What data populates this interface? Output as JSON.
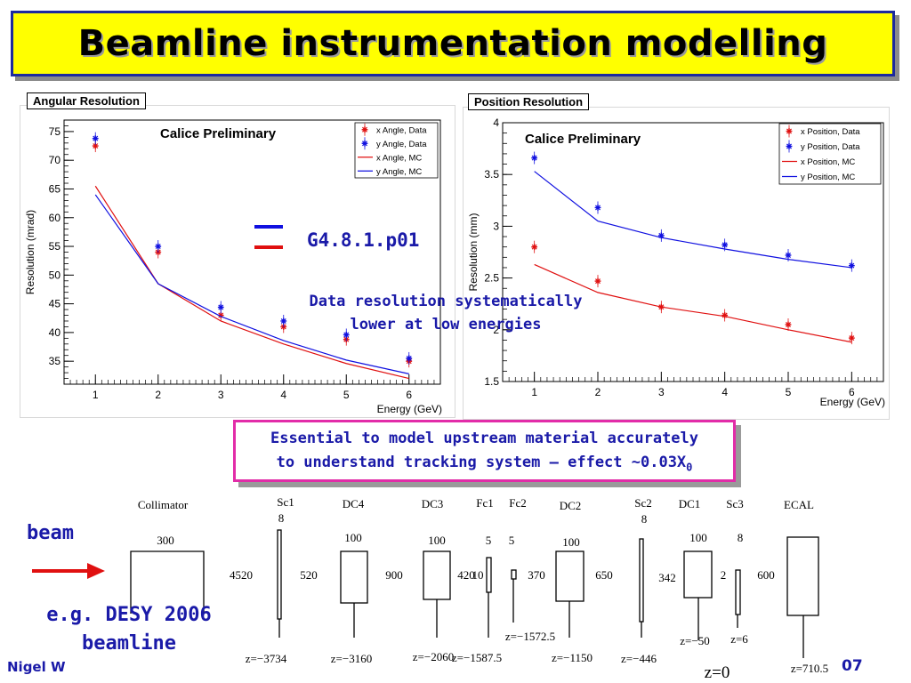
{
  "slide": {
    "title": "Beamline instrumentation modelling",
    "g4_version": "G4.8.1.p01",
    "note_line1": "Data resolution systematically",
    "note_line2": "lower at low energies",
    "callout_line1": "Essential to model upstream material accurately",
    "callout_line2": "to understand tracking system – effect ~0.03X",
    "callout_sub": "0",
    "beam_label": "beam",
    "desy_line1": "e.g. DESY 2006",
    "desy_line2": "beamline",
    "footer_left": "Nigel W",
    "footer_right": "07",
    "colors": {
      "data_blue": "#1a1aa8",
      "x_series": "#e01010",
      "y_series": "#1010e0",
      "title_bg": "#ffff00",
      "callout_border": "#e22ca8"
    }
  },
  "chart_data": [
    {
      "type": "scatter",
      "header": "Angular Resolution",
      "title": "Calice Preliminary",
      "xlabel": "Energy (GeV)",
      "ylabel": "Resolution (mrad)",
      "xlim": [
        0.5,
        6.5
      ],
      "ylim": [
        31,
        77
      ],
      "yticks": [
        35,
        40,
        45,
        50,
        55,
        60,
        65,
        70,
        75
      ],
      "xticks": [
        1,
        2,
        3,
        4,
        5,
        6
      ],
      "legend_position": "top-right",
      "series": [
        {
          "name": "x Angle, Data",
          "kind": "points",
          "color": "#e01010",
          "x": [
            1,
            2,
            3,
            4,
            5,
            6
          ],
          "y": [
            72.5,
            54.0,
            43.0,
            41.0,
            38.8,
            35.0
          ]
        },
        {
          "name": "y Angle, Data",
          "kind": "points",
          "color": "#1010e0",
          "x": [
            1,
            2,
            3,
            4,
            5,
            6
          ],
          "y": [
            73.8,
            55.0,
            44.4,
            42.0,
            39.6,
            35.5
          ]
        },
        {
          "name": "x Angle, MC",
          "kind": "line",
          "color": "#e01010",
          "x": [
            1,
            2,
            3,
            4,
            5,
            6
          ],
          "y": [
            65.5,
            48.5,
            42.0,
            38.0,
            34.6,
            32.0
          ]
        },
        {
          "name": "y Angle, MC",
          "kind": "line",
          "color": "#1010e0",
          "x": [
            1,
            2,
            3,
            4,
            5,
            6
          ],
          "y": [
            64.0,
            48.5,
            42.8,
            38.6,
            35.2,
            32.8
          ]
        }
      ]
    },
    {
      "type": "scatter",
      "header": "Position Resolution",
      "title": "Calice Preliminary",
      "xlabel": "Energy (GeV)",
      "ylabel": "Resolution (mm)",
      "xlim": [
        0.5,
        6.5
      ],
      "ylim": [
        1.5,
        4
      ],
      "yticks": [
        1.5,
        2,
        2.5,
        3,
        3.5,
        4
      ],
      "ytick_labels": [
        "1.5",
        "2",
        "2.5",
        "3",
        "3.5",
        "4"
      ],
      "xticks": [
        1,
        2,
        3,
        4,
        5,
        6
      ],
      "legend_position": "top-right",
      "series": [
        {
          "name": "x Position, Data",
          "kind": "points",
          "color": "#e01010",
          "x": [
            1,
            2,
            3,
            4,
            5,
            6
          ],
          "y": [
            2.8,
            2.47,
            2.22,
            2.14,
            2.05,
            1.92
          ]
        },
        {
          "name": "y Position, Data",
          "kind": "points",
          "color": "#1010e0",
          "x": [
            1,
            2,
            3,
            4,
            5,
            6
          ],
          "y": [
            3.66,
            3.18,
            2.91,
            2.82,
            2.72,
            2.62
          ]
        },
        {
          "name": "x Position, MC",
          "kind": "line",
          "color": "#e01010",
          "x": [
            1,
            2,
            3,
            4,
            5,
            6
          ],
          "y": [
            2.63,
            2.36,
            2.22,
            2.13,
            2.0,
            1.88
          ]
        },
        {
          "name": "y Position, MC",
          "kind": "line",
          "color": "#1010e0",
          "x": [
            1,
            2,
            3,
            4,
            5,
            6
          ],
          "y": [
            3.53,
            3.05,
            2.89,
            2.78,
            2.68,
            2.6
          ]
        }
      ]
    }
  ],
  "beamline": {
    "components": [
      {
        "name": "Collimator",
        "thickness": "300"
      },
      {
        "name": "Sc1",
        "thickness": "8"
      },
      {
        "name": "DC4",
        "thickness": "100"
      },
      {
        "name": "DC3",
        "thickness": "100"
      },
      {
        "name": "Fc1",
        "thickness": "5"
      },
      {
        "name": "Fc2",
        "thickness": "5"
      },
      {
        "name": "DC2",
        "thickness": "100"
      },
      {
        "name": "Sc2",
        "thickness": "8"
      },
      {
        "name": "DC1",
        "thickness": "100"
      },
      {
        "name": "Sc3",
        "thickness": "8"
      },
      {
        "name": "ECAL",
        "thickness": ""
      }
    ],
    "gaps": [
      "4520",
      "520",
      "900",
      "420",
      "10",
      "370",
      "650",
      "342",
      "2",
      "600"
    ],
    "z_labels": [
      "z=−3734",
      "z=−3160",
      "z=−2060",
      "z=−1587.5",
      "z=−1572.5",
      "z=−1150",
      "z=−446",
      "z=−50",
      "z=6",
      "z=0",
      "z=710.5"
    ]
  }
}
